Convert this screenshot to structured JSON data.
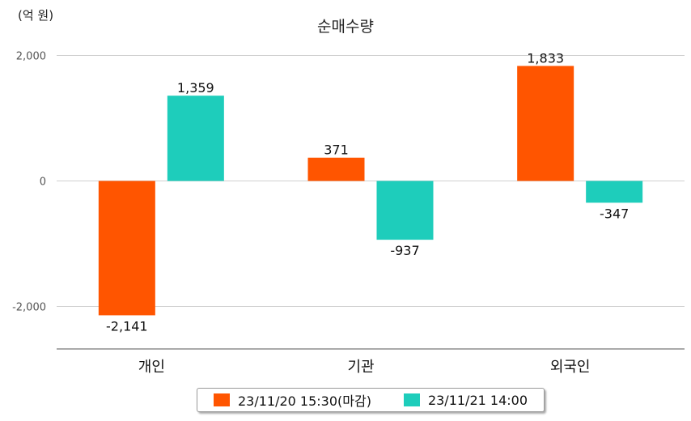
{
  "chart_data": {
    "type": "bar",
    "title": "순매수량",
    "unit_label": "(억 원)",
    "categories": [
      "개인",
      "기관",
      "외국인"
    ],
    "series": [
      {
        "name": "23/11/20 15:30(마감)",
        "color": "#ff5500",
        "values": [
          -2141,
          371,
          1833
        ],
        "labels": [
          "-2,141",
          "371",
          "1,833"
        ]
      },
      {
        "name": "23/11/21 14:00",
        "color": "#1ecdbb",
        "values": [
          1359,
          -937,
          -347
        ],
        "labels": [
          "1,359",
          "-937",
          "-347"
        ]
      }
    ],
    "yticks": [
      2000,
      0,
      -2000
    ],
    "ytick_labels": [
      "2,000",
      "0",
      "-2,000"
    ],
    "ylim": [
      -2650,
      2000
    ],
    "grid": true,
    "legend_position": "bottom"
  }
}
